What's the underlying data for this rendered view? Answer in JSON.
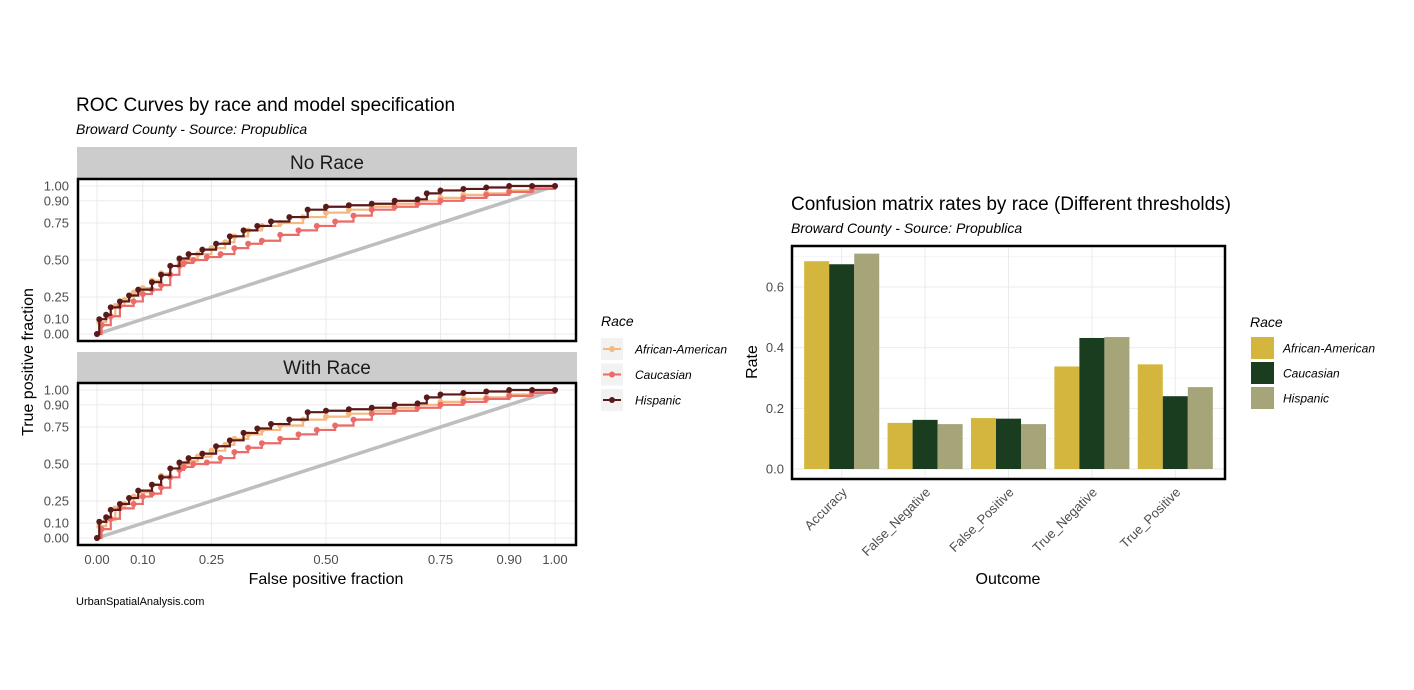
{
  "caption": "UrbanSpatialAnalysis.com",
  "chart_data": [
    {
      "type": "line",
      "title": "ROC Curves by race and model specification",
      "subtitle": "Broward County - Source: Propublica",
      "xlabel": "False positive fraction",
      "ylabel": "True positive fraction",
      "xlim": [
        0,
        1
      ],
      "ylim": [
        0,
        1
      ],
      "x_ticks": [
        "0.00",
        "0.10",
        "0.25",
        "0.50",
        "0.75",
        "0.90",
        "1.00"
      ],
      "y_ticks": [
        "0.00",
        "0.10",
        "0.25",
        "0.50",
        "0.75",
        "0.90",
        "1.00"
      ],
      "grid": true,
      "reference_line": {
        "from": [
          0,
          0
        ],
        "to": [
          1,
          1
        ],
        "color": "#bebebe"
      },
      "legend": {
        "title": "Race",
        "position": "right",
        "entries": [
          "African-American",
          "Caucasian",
          "Hispanic"
        ]
      },
      "colors": {
        "African-American": "#f4b880",
        "Caucasian": "#eb6b68",
        "Hispanic": "#5a1a19"
      },
      "facets": [
        {
          "label": "No Race",
          "series": [
            {
              "name": "African-American",
              "x": [
                0,
                0.005,
                0.02,
                0.04,
                0.06,
                0.08,
                0.1,
                0.12,
                0.14,
                0.16,
                0.18,
                0.2,
                0.22,
                0.25,
                0.28,
                0.3,
                0.33,
                0.36,
                0.4,
                0.45,
                0.5,
                0.55,
                0.6,
                0.65,
                0.7,
                0.75,
                0.8,
                0.85,
                0.9,
                0.95,
                1
              ],
              "y": [
                0,
                0.08,
                0.12,
                0.19,
                0.23,
                0.28,
                0.31,
                0.36,
                0.41,
                0.46,
                0.49,
                0.51,
                0.54,
                0.58,
                0.62,
                0.66,
                0.7,
                0.73,
                0.75,
                0.79,
                0.82,
                0.84,
                0.86,
                0.88,
                0.9,
                0.92,
                0.94,
                0.95,
                0.97,
                0.99,
                1
              ]
            },
            {
              "name": "Caucasian",
              "x": [
                0,
                0.01,
                0.03,
                0.05,
                0.08,
                0.1,
                0.12,
                0.14,
                0.16,
                0.18,
                0.19,
                0.21,
                0.24,
                0.27,
                0.3,
                0.33,
                0.36,
                0.4,
                0.44,
                0.48,
                0.52,
                0.56,
                0.6,
                0.65,
                0.7,
                0.75,
                0.8,
                0.85,
                0.9,
                0.95,
                1
              ],
              "y": [
                0,
                0.06,
                0.12,
                0.19,
                0.22,
                0.27,
                0.3,
                0.33,
                0.4,
                0.46,
                0.48,
                0.5,
                0.52,
                0.54,
                0.58,
                0.61,
                0.63,
                0.67,
                0.7,
                0.73,
                0.76,
                0.8,
                0.84,
                0.86,
                0.88,
                0.9,
                0.92,
                0.94,
                0.96,
                0.98,
                1
              ]
            },
            {
              "name": "Hispanic",
              "x": [
                0,
                0.005,
                0.02,
                0.03,
                0.05,
                0.07,
                0.09,
                0.12,
                0.14,
                0.16,
                0.18,
                0.2,
                0.23,
                0.26,
                0.29,
                0.32,
                0.35,
                0.38,
                0.42,
                0.46,
                0.5,
                0.55,
                0.6,
                0.65,
                0.7,
                0.72,
                0.75,
                0.8,
                0.85,
                0.9,
                0.95,
                1
              ],
              "y": [
                0,
                0.1,
                0.13,
                0.18,
                0.22,
                0.26,
                0.3,
                0.35,
                0.4,
                0.46,
                0.51,
                0.54,
                0.57,
                0.61,
                0.66,
                0.7,
                0.73,
                0.76,
                0.79,
                0.84,
                0.86,
                0.87,
                0.88,
                0.9,
                0.91,
                0.95,
                0.97,
                0.98,
                0.99,
                1,
                1,
                1
              ]
            }
          ]
        },
        {
          "label": "With Race",
          "series": [
            {
              "name": "African-American",
              "x": [
                0,
                0.005,
                0.02,
                0.04,
                0.06,
                0.08,
                0.1,
                0.12,
                0.14,
                0.16,
                0.18,
                0.2,
                0.22,
                0.25,
                0.28,
                0.3,
                0.33,
                0.36,
                0.4,
                0.45,
                0.5,
                0.55,
                0.6,
                0.65,
                0.7,
                0.75,
                0.8,
                0.85,
                0.9,
                0.95,
                1
              ],
              "y": [
                0,
                0.08,
                0.12,
                0.2,
                0.23,
                0.28,
                0.31,
                0.36,
                0.42,
                0.47,
                0.5,
                0.52,
                0.55,
                0.59,
                0.63,
                0.67,
                0.7,
                0.73,
                0.76,
                0.8,
                0.82,
                0.84,
                0.86,
                0.88,
                0.9,
                0.92,
                0.94,
                0.95,
                0.97,
                0.99,
                1
              ]
            },
            {
              "name": "Caucasian",
              "x": [
                0,
                0.01,
                0.03,
                0.05,
                0.08,
                0.1,
                0.12,
                0.14,
                0.16,
                0.18,
                0.19,
                0.21,
                0.24,
                0.27,
                0.3,
                0.33,
                0.36,
                0.4,
                0.44,
                0.48,
                0.52,
                0.56,
                0.6,
                0.65,
                0.7,
                0.75,
                0.8,
                0.85,
                0.9,
                0.95,
                1
              ],
              "y": [
                0,
                0.06,
                0.13,
                0.2,
                0.23,
                0.28,
                0.3,
                0.34,
                0.41,
                0.46,
                0.48,
                0.5,
                0.51,
                0.54,
                0.58,
                0.61,
                0.64,
                0.67,
                0.7,
                0.73,
                0.76,
                0.8,
                0.84,
                0.86,
                0.88,
                0.9,
                0.92,
                0.94,
                0.96,
                0.98,
                1
              ]
            },
            {
              "name": "Hispanic",
              "x": [
                0,
                0.005,
                0.02,
                0.03,
                0.05,
                0.07,
                0.09,
                0.12,
                0.14,
                0.16,
                0.18,
                0.2,
                0.23,
                0.26,
                0.29,
                0.32,
                0.35,
                0.38,
                0.42,
                0.46,
                0.5,
                0.55,
                0.6,
                0.65,
                0.7,
                0.72,
                0.75,
                0.8,
                0.85,
                0.9,
                0.95,
                1
              ],
              "y": [
                0,
                0.11,
                0.14,
                0.19,
                0.23,
                0.27,
                0.32,
                0.36,
                0.41,
                0.47,
                0.51,
                0.54,
                0.57,
                0.62,
                0.66,
                0.71,
                0.74,
                0.77,
                0.8,
                0.85,
                0.86,
                0.87,
                0.88,
                0.9,
                0.91,
                0.95,
                0.97,
                0.98,
                0.99,
                1,
                1,
                1
              ]
            }
          ]
        }
      ]
    },
    {
      "type": "bar",
      "title": "Confusion matrix rates by race (Different thresholds)",
      "subtitle": "Broward County - Source: Propublica",
      "xlabel": "Outcome",
      "ylabel": "Rate",
      "ylim": [
        0,
        0.74
      ],
      "y_ticks": [
        "0.0",
        "0.2",
        "0.4",
        "0.6"
      ],
      "grid": true,
      "categories": [
        "Accuracy",
        "False_Negative",
        "False_Positive",
        "True_Negative",
        "True_Positive"
      ],
      "legend": {
        "title": "Race",
        "position": "right"
      },
      "series": [
        {
          "name": "African-American",
          "color": "#d4b63e",
          "values": [
            0.685,
            0.152,
            0.168,
            0.338,
            0.345
          ]
        },
        {
          "name": "Caucasian",
          "color": "#1a3d1f",
          "values": [
            0.675,
            0.162,
            0.166,
            0.432,
            0.24
          ]
        },
        {
          "name": "Hispanic",
          "color": "#a6a57a",
          "values": [
            0.71,
            0.148,
            0.148,
            0.435,
            0.27
          ]
        }
      ]
    }
  ]
}
